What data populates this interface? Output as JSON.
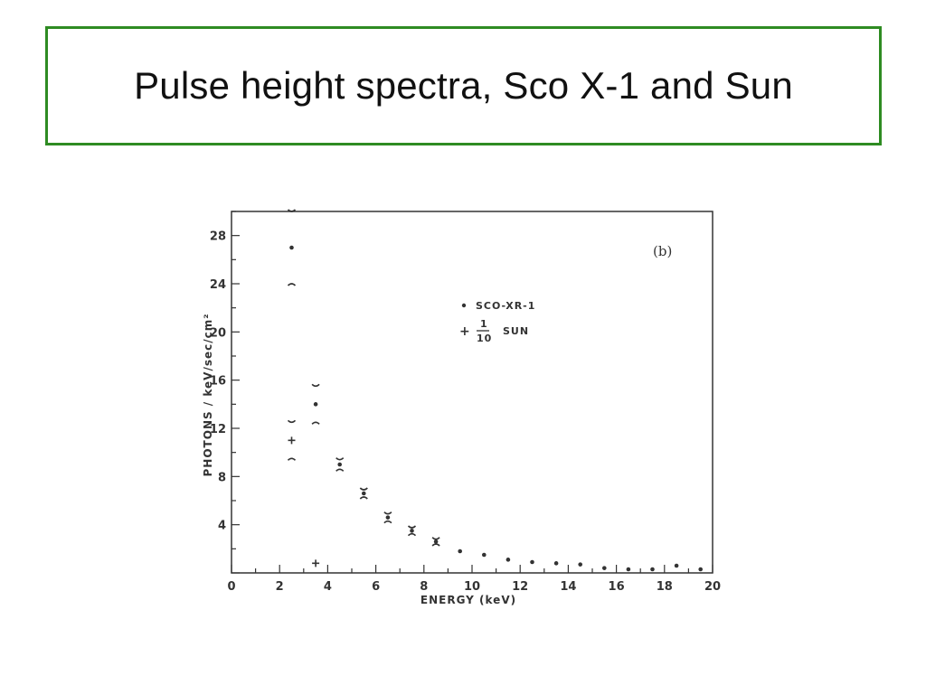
{
  "slide": {
    "title": "Pulse height spectra, Sco X-1 and Sun"
  },
  "chart_data": {
    "type": "scatter",
    "panel_label": "(b)",
    "xlabel": "ENERGY (keV)",
    "ylabel": "PHOTONS / keV/sec/cm²",
    "xlim": [
      0,
      20
    ],
    "ylim": [
      0,
      30
    ],
    "x_ticks": [
      "0",
      "2",
      "4",
      "6",
      "8",
      "10",
      "12",
      "14",
      "16",
      "18",
      "20"
    ],
    "y_ticks": [
      "4",
      "8",
      "12",
      "16",
      "20",
      "24",
      "28"
    ],
    "legend": {
      "sco_label": "SCO-XR-1",
      "sun_prefix": "+",
      "sun_fraction_num": "1",
      "sun_fraction_den": "10",
      "sun_label": "SUN"
    },
    "series": [
      {
        "name": "SCO-XR-1",
        "marker": "dot",
        "points": [
          {
            "x": 2.5,
            "y": 27.0,
            "lo": 24.0,
            "hi": 30.0
          },
          {
            "x": 3.5,
            "y": 14.0,
            "lo": 12.5,
            "hi": 15.5
          },
          {
            "x": 4.5,
            "y": 9.0,
            "lo": 8.6,
            "hi": 9.4
          },
          {
            "x": 5.5,
            "y": 6.6,
            "lo": 6.3,
            "hi": 6.9
          },
          {
            "x": 6.5,
            "y": 4.6,
            "lo": 4.3,
            "hi": 4.9
          },
          {
            "x": 7.5,
            "y": 3.5,
            "lo": 3.25,
            "hi": 3.75
          },
          {
            "x": 8.5,
            "y": 2.6,
            "lo": 2.4,
            "hi": 2.8
          },
          {
            "x": 9.5,
            "y": 1.8
          },
          {
            "x": 10.5,
            "y": 1.5
          },
          {
            "x": 11.5,
            "y": 1.1
          },
          {
            "x": 12.5,
            "y": 0.9
          },
          {
            "x": 13.5,
            "y": 0.8
          },
          {
            "x": 14.5,
            "y": 0.7
          },
          {
            "x": 15.5,
            "y": 0.4
          },
          {
            "x": 16.5,
            "y": 0.3
          },
          {
            "x": 17.5,
            "y": 0.3
          },
          {
            "x": 18.5,
            "y": 0.6
          },
          {
            "x": 19.5,
            "y": 0.3
          }
        ]
      },
      {
        "name": "1/10 SUN",
        "marker": "plus",
        "points": [
          {
            "x": 2.5,
            "y": 11.0,
            "lo": 9.5,
            "hi": 12.5
          },
          {
            "x": 3.5,
            "y": 0.8
          }
        ]
      }
    ]
  }
}
